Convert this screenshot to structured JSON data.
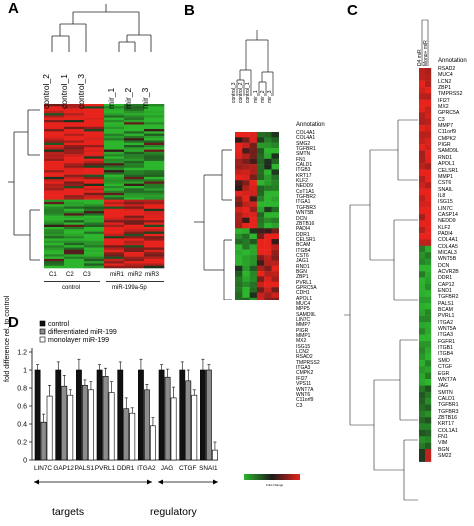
{
  "panels": {
    "a": "A",
    "b": "B",
    "c": "C",
    "d": "D"
  },
  "colors": {
    "red": "#e8231c",
    "green": "#2db52d",
    "dark": "#1a1a1a"
  },
  "panel_a": {
    "columns": [
      "control_2",
      "control_1",
      "control_3",
      "mir_1",
      "mir_2",
      "mir_3"
    ],
    "sample_labels": [
      "C1",
      "C2",
      "C3",
      "miR1",
      "miR2",
      "miR3"
    ],
    "group_control": "control",
    "group_mir": "miR-199a-5p"
  },
  "panel_b": {
    "columns": [
      "control_3",
      "control_2",
      "control_1",
      "mir_1",
      "mir_2",
      "mir_3"
    ],
    "annotation_title": "Annotation",
    "genes": [
      "COL4A1",
      "COL4A1",
      "SMG2",
      "TGFBR1",
      "SMTN",
      "FN1",
      "CALD1",
      "ITGB3",
      "KRT17",
      "KLF2",
      "NEDD9",
      "CoT1A1",
      "TGFBR2",
      "ITGA1",
      "TGFBR3",
      "WNT5B",
      "DCN",
      "ZBTB16",
      "PADI4",
      "DDR1",
      "CELSR1",
      "BCAM",
      "ITGB4",
      "CST6",
      "JAG1",
      "RND1",
      "BGN",
      "ZBP1",
      "PVRL1",
      "GPRC5A",
      "CDH1",
      "APOL1",
      "MUC4",
      "MPP5",
      "SAMD9L",
      "LIN7C",
      "MMP7",
      "PIGR",
      "MMP1",
      "MX2",
      "ISG15",
      "LCN2",
      "RSAD2",
      "TMPRSS2",
      "ITGA3",
      "CMPK2",
      "IFI27",
      "VPS11",
      "WNT7A",
      "WNT6",
      "C11orf9",
      "C3"
    ],
    "scale_label": "Fold Change"
  },
  "panel_c": {
    "columns": [
      "D4 miR",
      "Mono+ miR"
    ],
    "annotation_title": "Annotation",
    "genes": [
      "RSAD2",
      "MUC4",
      "LCN2",
      "ZBP1",
      "TMPRSS2",
      "IFI27",
      "MX2",
      "GPRC5A",
      "C3",
      "MMP7",
      "C11orf9",
      "CMPK2",
      "PIGR",
      "SAMD9L",
      "RND1",
      "APOL1",
      "CELSR1",
      "MMP1",
      "CST6",
      "SNAIL",
      "IL8",
      "ISG15",
      "LIN7C",
      "CASP14",
      "NEDD9",
      "KLF2",
      "PADI4",
      "COL4A1",
      "COL4A5",
      "MICAL3",
      "WNT5B",
      "DCN",
      "ACVR2B",
      "DDR1",
      "CAP12",
      "END1",
      "TGFBR2",
      "PALS1",
      "BCAM",
      "PVRL1",
      "ITGA2",
      "WNT5A",
      "ITGA3",
      "FGFR1",
      "ITGB1",
      "ITGB4",
      "SMO",
      "CTGF",
      "EGR",
      "WNT7A",
      "JAG",
      "SMTN",
      "CALD1",
      "TGFBR1",
      "TGFBR3",
      "ZBTB16",
      "KRT17",
      "COL1A1",
      "FN1",
      "VIM",
      "BGN",
      "SM22"
    ]
  },
  "chart_data": {
    "type": "bar",
    "ylabel": "fold difference rel. to control",
    "ylim": [
      0,
      1.2
    ],
    "yticks": [
      "0",
      "0.2",
      "0.4",
      "0.6",
      "0.8",
      "1",
      "1.2"
    ],
    "categories": [
      "LIN7C",
      "GAP12",
      "PALS1",
      "PVRL1",
      "DDR1",
      "ITGA2",
      "JAG",
      "CTGF",
      "SNAI1"
    ],
    "series": [
      {
        "name": "control",
        "color": "#111111",
        "values": [
          1,
          1,
          1,
          1,
          1,
          1,
          1,
          1,
          1
        ]
      },
      {
        "name": "differentiated miR-199",
        "color": "#8c8c8c",
        "values": [
          0.42,
          0.82,
          0.83,
          0.93,
          0.57,
          0.78,
          0.92,
          0.88,
          1.0
        ]
      },
      {
        "name": "monolayer miR-199",
        "color": "#ffffff",
        "values": [
          0.71,
          0.72,
          0.78,
          0.75,
          0.52,
          0.38,
          0.69,
          0.72,
          0.11
        ]
      }
    ],
    "groups": [
      {
        "label": "targets",
        "from": 0,
        "to": 5
      },
      {
        "label": "regulatory",
        "from": 6,
        "to": 8
      }
    ]
  }
}
